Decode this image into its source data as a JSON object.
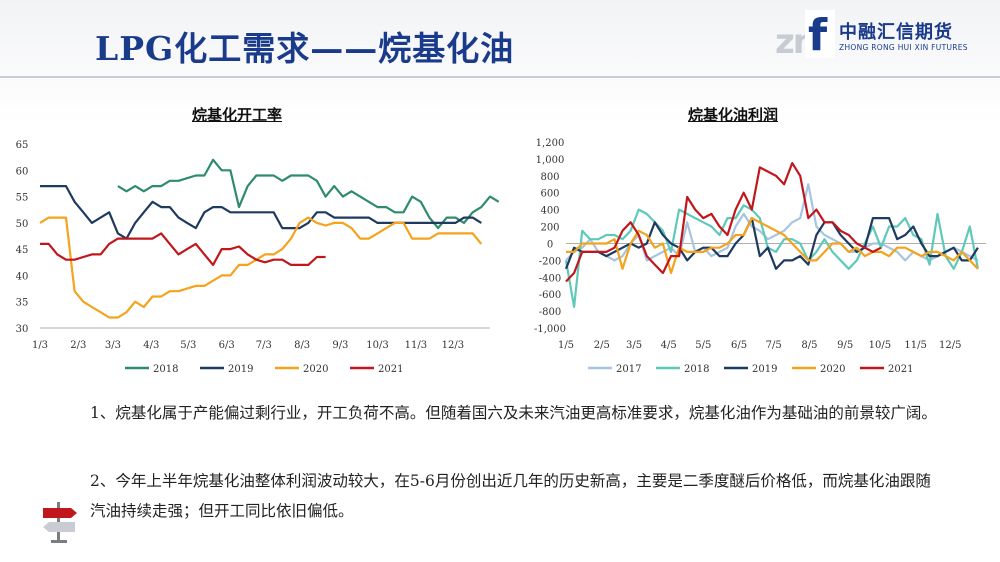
{
  "page": {
    "title": "LPG化工需求——烷基化油",
    "logo": {
      "mark": "zn",
      "mark_f": "f",
      "cn": "中融汇信期货",
      "en": "ZHONG RONG HUI XIN FUTURES"
    },
    "paragraphs": [
      "1、烷基化属于产能偏过剩行业，开工负荷不高。但随着国六及未来汽油更高标准要求，烷基化油作为基础油的前景较广阔。",
      "2、今年上半年烷基化油整体利润波动较大，在5-6月份创出近几年的历史新高，主要是二季度醚后价格低，而烷基化油跟随汽油持续走强；但开工同比依旧偏低。"
    ],
    "colors": {
      "title": "#1a3a8c",
      "accent": "#1a3a8c"
    },
    "icons": [
      "signpost-icon"
    ]
  },
  "chart_data": [
    {
      "type": "line",
      "title": "烷基化开工率",
      "ylim": [
        30,
        65
      ],
      "yticks": [
        30,
        35,
        40,
        45,
        50,
        55,
        60,
        65
      ],
      "xlim": [
        0,
        52
      ],
      "xticks": [
        {
          "label": "1/3",
          "pos": 0
        },
        {
          "label": "2/3",
          "pos": 4.43
        },
        {
          "label": "3/3",
          "pos": 8.43
        },
        {
          "label": "4/3",
          "pos": 12.86
        },
        {
          "label": "5/3",
          "pos": 17.14
        },
        {
          "label": "6/3",
          "pos": 21.57
        },
        {
          "label": "7/3",
          "pos": 25.86
        },
        {
          "label": "8/3",
          "pos": 30.29
        },
        {
          "label": "9/3",
          "pos": 34.71
        },
        {
          "label": "10/3",
          "pos": 39
        },
        {
          "label": "11/3",
          "pos": 43.43
        },
        {
          "label": "12/3",
          "pos": 47.71
        }
      ],
      "series": [
        {
          "name": "2018",
          "color": "#2e8b6e",
          "values": [
            null,
            null,
            null,
            null,
            null,
            null,
            null,
            null,
            null,
            57,
            56,
            57,
            56,
            57,
            57,
            58,
            58,
            58.5,
            59,
            59,
            62,
            60,
            60,
            53,
            57,
            59,
            59,
            59,
            58,
            59,
            59,
            59,
            58,
            55,
            57,
            55,
            56,
            55,
            54,
            53,
            53,
            52,
            52,
            55,
            54,
            51,
            49,
            51,
            51,
            50,
            52,
            53,
            55,
            54
          ]
        },
        {
          "name": "2019",
          "color": "#1f3a5f",
          "values": [
            57,
            57,
            57,
            57,
            54,
            52,
            50,
            51,
            52,
            48,
            47,
            50,
            52,
            54,
            53,
            53,
            51,
            50,
            49,
            52,
            53,
            53,
            52,
            52,
            52,
            52,
            52,
            52,
            49,
            49,
            49,
            50,
            52,
            52,
            51,
            51,
            51,
            51,
            51,
            50,
            50,
            50,
            50,
            50,
            50,
            50,
            50,
            50,
            50,
            51,
            51,
            50
          ]
        },
        {
          "name": "2020",
          "color": "#f5a21c",
          "values": [
            50,
            51,
            51,
            51,
            37,
            35,
            34,
            33,
            32,
            32,
            33,
            35,
            34,
            36,
            36,
            37,
            37,
            37.5,
            38,
            38,
            39,
            40,
            40,
            42,
            42,
            43,
            44,
            44,
            45,
            47,
            50,
            51,
            50,
            49.5,
            50,
            50,
            49,
            47,
            47,
            48,
            49,
            50,
            50,
            47,
            47,
            47,
            48,
            48,
            48,
            48,
            48,
            46
          ]
        },
        {
          "name": "2021",
          "color": "#c0171c",
          "values": [
            46,
            46,
            44,
            43,
            43,
            43.5,
            44,
            44,
            46,
            47,
            47,
            47,
            47,
            47,
            48,
            46,
            44,
            45,
            46,
            44,
            42,
            45,
            45,
            45.5,
            44,
            43,
            42.5,
            43,
            43,
            42,
            42,
            42,
            43.5,
            43.5
          ]
        }
      ]
    },
    {
      "type": "line",
      "title": "烷基化油利润",
      "ylim": [
        -1000,
        1200
      ],
      "yticks": [
        -1000,
        -800,
        -600,
        -400,
        -200,
        0,
        200,
        400,
        600,
        800,
        1000,
        1200
      ],
      "ytick_labels": [
        "-1,000",
        "-800",
        "-600",
        "-400",
        "-200",
        "0",
        "200",
        "400",
        "600",
        "800",
        "1,000",
        "1,200"
      ],
      "xlim": [
        0,
        52
      ],
      "xticks": [
        {
          "label": "1/5",
          "pos": 0
        },
        {
          "label": "2/5",
          "pos": 4.43
        },
        {
          "label": "3/5",
          "pos": 8.43
        },
        {
          "label": "4/5",
          "pos": 12.71
        },
        {
          "label": "5/5",
          "pos": 17
        },
        {
          "label": "6/5",
          "pos": 21.43
        },
        {
          "label": "7/5",
          "pos": 25.71
        },
        {
          "label": "8/5",
          "pos": 30.14
        },
        {
          "label": "9/5",
          "pos": 34.57
        },
        {
          "label": "10/5",
          "pos": 38.86
        },
        {
          "label": "11/5",
          "pos": 43.29
        },
        {
          "label": "12/5",
          "pos": 47.57
        }
      ],
      "series": [
        {
          "name": "2017",
          "color": "#a7c4e0",
          "values": [
            -200,
            -100,
            -50,
            50,
            -100,
            -150,
            -200,
            -150,
            0,
            100,
            -200,
            -150,
            -100,
            -50,
            -150,
            250,
            -100,
            -50,
            -150,
            -100,
            -50,
            200,
            350,
            200,
            150,
            50,
            100,
            150,
            250,
            300,
            700,
            200,
            100,
            50,
            0,
            -100,
            -100,
            -50,
            0,
            0,
            -50,
            -100,
            -200,
            -100,
            -150,
            -200,
            -150,
            -100,
            -50,
            -100,
            -150,
            -200
          ]
        },
        {
          "name": "2018",
          "color": "#5fc9b9",
          "values": [
            -200,
            -750,
            150,
            50,
            50,
            100,
            100,
            50,
            150,
            400,
            350,
            250,
            150,
            -100,
            400,
            350,
            300,
            250,
            200,
            100,
            300,
            300,
            450,
            400,
            300,
            -50,
            -100,
            50,
            50,
            0,
            -200,
            -100,
            50,
            -100,
            -200,
            -300,
            -200,
            0,
            200,
            -50,
            200,
            200,
            300,
            100,
            50,
            -250,
            350,
            -150,
            -300,
            -100,
            200,
            -300
          ]
        },
        {
          "name": "2019",
          "color": "#1f3a5f",
          "values": [
            -300,
            -50,
            -100,
            -100,
            -100,
            -150,
            -100,
            -50,
            0,
            -50,
            0,
            250,
            100,
            0,
            -50,
            -200,
            -100,
            -50,
            -50,
            -150,
            -150,
            0,
            100,
            300,
            -150,
            -50,
            -300,
            -200,
            -200,
            -150,
            -250,
            100,
            250,
            250,
            100,
            0,
            -100,
            -50,
            300,
            300,
            300,
            50,
            100,
            200,
            0,
            -150,
            -150,
            -100,
            -50,
            -200,
            -200,
            -50
          ]
        },
        {
          "name": "2020",
          "color": "#f5a21c",
          "values": [
            -100,
            -100,
            0,
            0,
            0,
            0,
            50,
            -300,
            0,
            150,
            100,
            -50,
            0,
            -350,
            -50,
            -100,
            -100,
            -100,
            -50,
            -50,
            0,
            100,
            100,
            300,
            250,
            200,
            150,
            100,
            0,
            -100,
            -200,
            -200,
            -100,
            0,
            0,
            -100,
            -50,
            -150,
            -100,
            -100,
            -150,
            -50,
            -50,
            -100,
            -150,
            -100,
            -100,
            -150,
            -200,
            -100,
            -200,
            -300
          ]
        },
        {
          "name": "2021",
          "color": "#c0171c",
          "values": [
            -450,
            -350,
            -100,
            -100,
            -100,
            -100,
            -50,
            150,
            250,
            100,
            -150,
            -250,
            -350,
            -150,
            -150,
            550,
            400,
            300,
            350,
            200,
            100,
            400,
            600,
            400,
            900,
            850,
            800,
            700,
            950,
            800,
            300,
            400,
            250,
            250,
            150,
            100,
            0,
            -50,
            -100,
            -50
          ]
        }
      ]
    }
  ]
}
